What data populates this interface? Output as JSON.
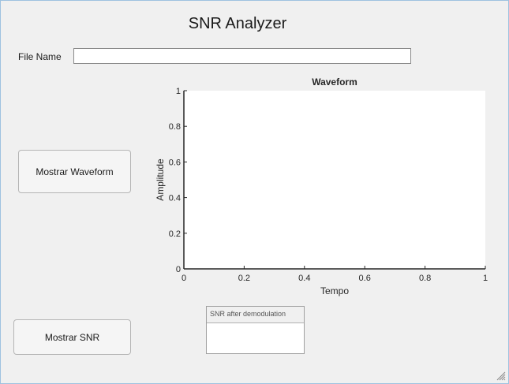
{
  "app": {
    "title": "SNR Analyzer"
  },
  "file": {
    "label": "File Name",
    "value": "",
    "placeholder": ""
  },
  "buttons": {
    "waveform": "Mostrar Waveform",
    "snr": "Mostrar SNR"
  },
  "chart_data": {
    "type": "line",
    "title": "Waveform",
    "xlabel": "Tempo",
    "ylabel": "Amplitude",
    "xlim": [
      0,
      1
    ],
    "ylim": [
      0,
      1
    ],
    "xticks": [
      "0",
      "0.2",
      "0.4",
      "0.6",
      "0.8",
      "1"
    ],
    "yticks": [
      "0",
      "0.2",
      "0.4",
      "0.6",
      "0.8",
      "1"
    ],
    "series": [],
    "grid": false
  },
  "snr_panel": {
    "title": "SNR after demodulation",
    "value": ""
  }
}
